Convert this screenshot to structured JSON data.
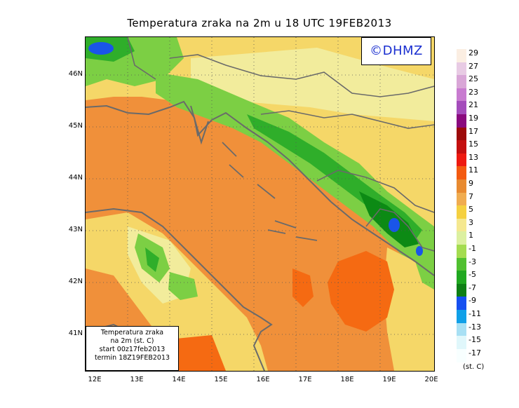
{
  "title": "Temperatura zraka na 2m u 18 UTC 19FEB2013",
  "logo": "©DHMZ",
  "info": {
    "line1": "Temperatura zraka",
    "line2": "na 2m (st. C)",
    "line3": "start 00z17feb2013",
    "line4": "termin 18Z19FEB2013"
  },
  "axes": {
    "x_ticks": [
      "12E",
      "13E",
      "14E",
      "15E",
      "16E",
      "17E",
      "18E",
      "19E",
      "20E"
    ],
    "y_ticks": [
      "46N",
      "45N",
      "44N",
      "43N",
      "42N",
      "41N"
    ]
  },
  "colorbar": {
    "unit": "(st. C)",
    "labels": [
      "29",
      "27",
      "25",
      "23",
      "21",
      "19",
      "17",
      "15",
      "13",
      "11",
      "9",
      "7",
      "5",
      "3",
      "1",
      "-1",
      "-3",
      "-5",
      "-7",
      "-9",
      "-11",
      "-13",
      "-15",
      "-17"
    ],
    "colors": [
      "#fbeee2",
      "#e8cbe4",
      "#d9a6d7",
      "#c87bd0",
      "#a44cbb",
      "#8a0a7e",
      "#9c0a0a",
      "#c4100f",
      "#ee1a10",
      "#f35a10",
      "#e88a30",
      "#f0ac50",
      "#f5d040",
      "#f5e890",
      "#dcf0a0",
      "#a4dc50",
      "#50c030",
      "#20a820",
      "#0e7f14",
      "#1650f0",
      "#10a0e8",
      "#a8e0f4",
      "#e0f7fb",
      "#f8ffff"
    ]
  },
  "map_colors": {
    "sea_warm": "#f0903a",
    "sea_hot": "#f56a12",
    "land_yellow": "#f5d768",
    "land_pale": "#f2ec9c",
    "land_lightgreen": "#cfe990",
    "land_green": "#7ccf44",
    "land_darkgreen": "#2fae2a",
    "land_deep": "#0c8a14",
    "cold_blue": "#1a55e8",
    "coast": "#6a6a6a"
  }
}
